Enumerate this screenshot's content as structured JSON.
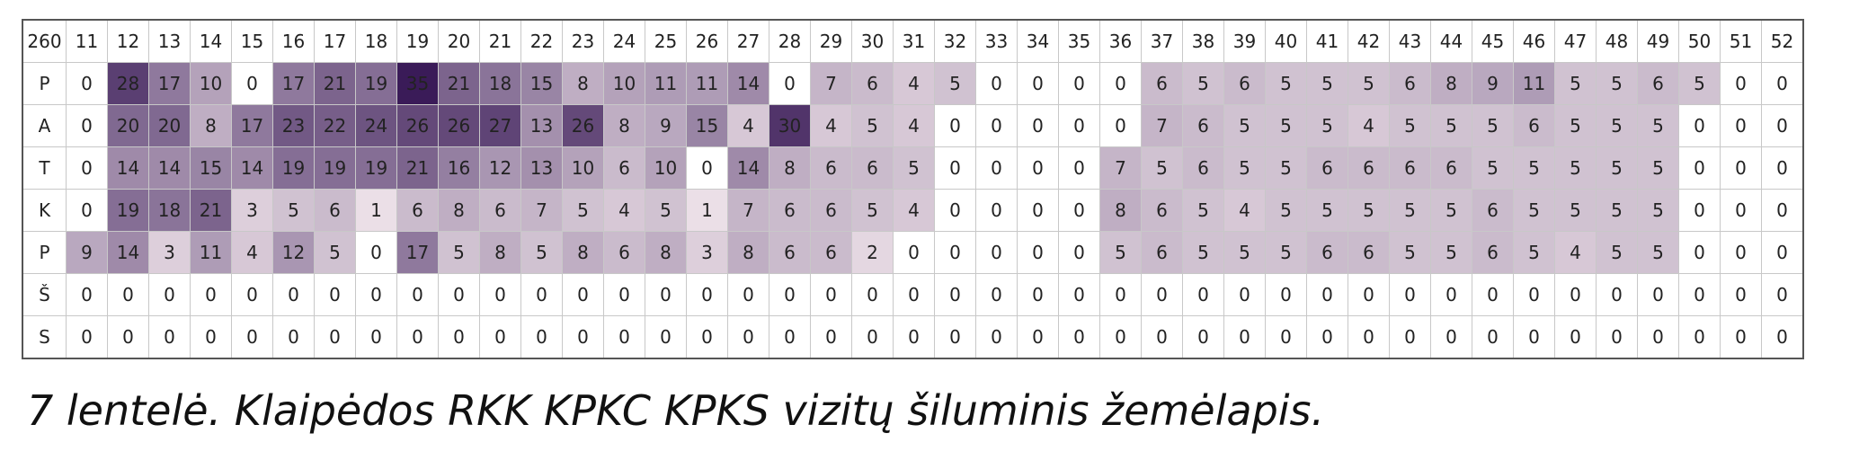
{
  "table": {
    "corner": "260",
    "columns": [
      11,
      12,
      13,
      14,
      15,
      16,
      17,
      18,
      19,
      20,
      21,
      22,
      23,
      24,
      25,
      26,
      27,
      28,
      29,
      30,
      31,
      32,
      33,
      34,
      35,
      36,
      37,
      38,
      39,
      40,
      41,
      42,
      43,
      44,
      45,
      46,
      47,
      48,
      49,
      50,
      51,
      52
    ],
    "color_low": "#f4e9ee",
    "color_high": "#3a1b58",
    "rows": [
      {
        "label": "P",
        "values": [
          0,
          28,
          17,
          10,
          0,
          17,
          21,
          19,
          35,
          21,
          18,
          15,
          8,
          10,
          11,
          11,
          14,
          0,
          7,
          6,
          4,
          5,
          0,
          0,
          0,
          0,
          6,
          5,
          6,
          5,
          5,
          5,
          6,
          8,
          9,
          11,
          5,
          5,
          6,
          5,
          0,
          0
        ]
      },
      {
        "label": "A",
        "values": [
          0,
          20,
          20,
          8,
          17,
          23,
          22,
          24,
          26,
          26,
          27,
          13,
          26,
          8,
          9,
          15,
          4,
          30,
          4,
          5,
          4,
          0,
          0,
          0,
          0,
          0,
          7,
          6,
          5,
          5,
          5,
          4,
          5,
          5,
          5,
          6,
          5,
          5,
          5,
          0,
          0,
          0
        ]
      },
      {
        "label": "T",
        "values": [
          0,
          14,
          14,
          15,
          14,
          19,
          19,
          19,
          21,
          16,
          12,
          13,
          10,
          6,
          10,
          0,
          14,
          8,
          6,
          6,
          5,
          0,
          0,
          0,
          0,
          7,
          5,
          6,
          5,
          5,
          6,
          6,
          6,
          6,
          5,
          5,
          5,
          5,
          5,
          0,
          0,
          0
        ]
      },
      {
        "label": "K",
        "values": [
          0,
          19,
          18,
          21,
          3,
          5,
          6,
          1,
          6,
          8,
          6,
          7,
          5,
          4,
          5,
          1,
          7,
          6,
          6,
          5,
          4,
          0,
          0,
          0,
          0,
          8,
          6,
          5,
          4,
          5,
          5,
          5,
          5,
          5,
          6,
          5,
          5,
          5,
          5,
          0,
          0,
          0
        ]
      },
      {
        "label": "P",
        "values": [
          9,
          14,
          3,
          11,
          4,
          12,
          5,
          0,
          17,
          5,
          8,
          5,
          8,
          6,
          8,
          3,
          8,
          6,
          6,
          2,
          0,
          0,
          0,
          0,
          0,
          5,
          6,
          5,
          5,
          5,
          6,
          6,
          5,
          5,
          6,
          5,
          4,
          5,
          5,
          0,
          0,
          0
        ]
      },
      {
        "label": "Š",
        "values": [
          0,
          0,
          0,
          0,
          0,
          0,
          0,
          0,
          0,
          0,
          0,
          0,
          0,
          0,
          0,
          0,
          0,
          0,
          0,
          0,
          0,
          0,
          0,
          0,
          0,
          0,
          0,
          0,
          0,
          0,
          0,
          0,
          0,
          0,
          0,
          0,
          0,
          0,
          0,
          0,
          0,
          0
        ]
      },
      {
        "label": "S",
        "values": [
          0,
          0,
          0,
          0,
          0,
          0,
          0,
          0,
          0,
          0,
          0,
          0,
          0,
          0,
          0,
          0,
          0,
          0,
          0,
          0,
          0,
          0,
          0,
          0,
          0,
          0,
          0,
          0,
          0,
          0,
          0,
          0,
          0,
          0,
          0,
          0,
          0,
          0,
          0,
          0,
          0,
          0
        ]
      }
    ]
  },
  "caption": "7 lentelė. Klaipėdos RKK KPKC KPKS vizitų šiluminis žemėlapis."
}
